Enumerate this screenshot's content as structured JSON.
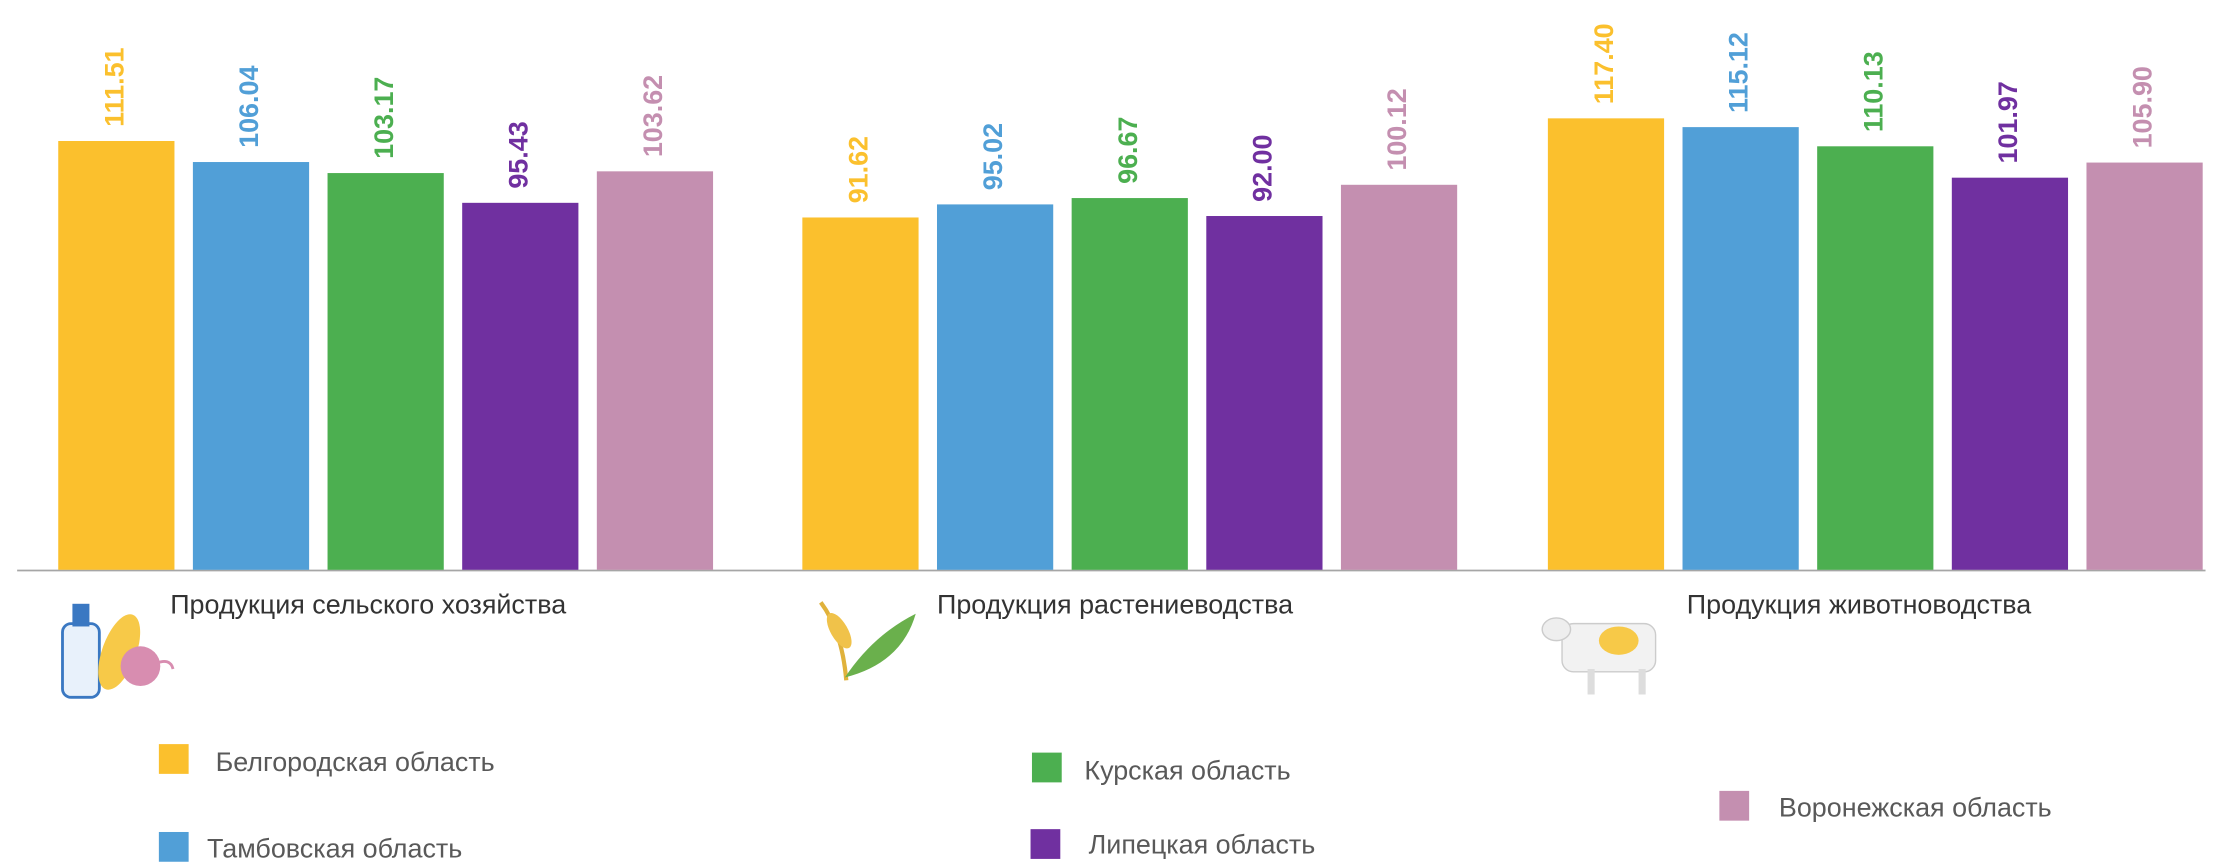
{
  "chart_data": {
    "type": "bar",
    "categories": [
      "Продукция сельского хозяйства",
      "Продукция растениеводства",
      "Продукция животноводства"
    ],
    "series": [
      {
        "name": "Белгородская область",
        "color": "#fbc02d",
        "values": [
          111.51,
          91.62,
          117.4
        ],
        "value_labels": [
          "111.51",
          "91.62",
          "117.40"
        ]
      },
      {
        "name": "Тамбовская область",
        "color": "#519fd7",
        "values": [
          106.04,
          95.02,
          115.12
        ],
        "value_labels": [
          "106.04",
          "95.02",
          "115.12"
        ]
      },
      {
        "name": "Курская область",
        "color": "#4caf50",
        "values": [
          103.17,
          96.67,
          110.13
        ],
        "value_labels": [
          "103.17",
          "96.67",
          "110.13"
        ]
      },
      {
        "name": "Липецкая область",
        "color": "#7030a0",
        "values": [
          95.43,
          92,
          101.97
        ],
        "value_labels": [
          "95.43",
          "92.00",
          "101.97"
        ]
      },
      {
        "name": "Воронежская область",
        "color": "#c48fb0",
        "values": [
          103.62,
          100.12,
          105.9
        ],
        "value_labels": [
          "103.62",
          "100.12",
          "105.90"
        ]
      }
    ]
  }
}
